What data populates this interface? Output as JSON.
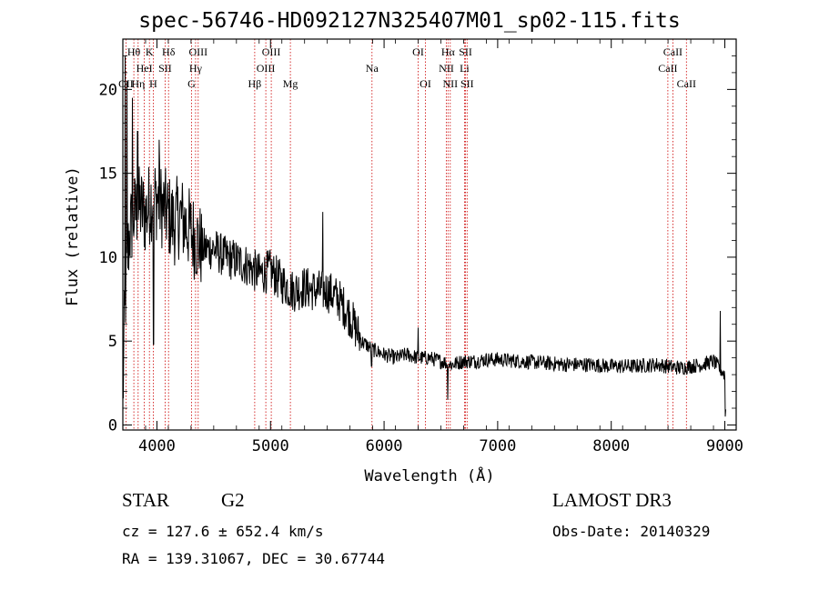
{
  "chart_data": {
    "type": "line",
    "title": "spec-56746-HD092127N325407M01_sp02-115.fits",
    "xlabel": "Wavelength (Å)",
    "ylabel": "Flux (relative)",
    "xlim": [
      3700,
      9100
    ],
    "ylim": [
      -0.3,
      23
    ],
    "x_ticks": [
      4000,
      5000,
      6000,
      7000,
      8000,
      9000
    ],
    "y_ticks": [
      0,
      5,
      10,
      15,
      20
    ],
    "series": [
      {
        "name": "flux",
        "anchors": [
          [
            3700,
            1
          ],
          [
            3710,
            5.0
          ],
          [
            3730,
            9.0
          ],
          [
            3760,
            11.5
          ],
          [
            3800,
            12.5
          ],
          [
            3850,
            13.0
          ],
          [
            3900,
            12.5
          ],
          [
            3950,
            13.5
          ],
          [
            4000,
            13.5
          ],
          [
            4050,
            13.0
          ],
          [
            4100,
            12.5
          ],
          [
            4150,
            12.0
          ],
          [
            4200,
            12.5
          ],
          [
            4250,
            12.0
          ],
          [
            4300,
            11.5
          ],
          [
            4350,
            11.0
          ],
          [
            4400,
            10.5
          ],
          [
            4500,
            10.5
          ],
          [
            4600,
            10.0
          ],
          [
            4700,
            9.8
          ],
          [
            4800,
            9.5
          ],
          [
            4900,
            9.0
          ],
          [
            5000,
            9.2
          ],
          [
            5100,
            8.5
          ],
          [
            5200,
            8.0
          ],
          [
            5300,
            8.2
          ],
          [
            5400,
            8.0
          ],
          [
            5500,
            8.0
          ],
          [
            5600,
            7.5
          ],
          [
            5700,
            6.5
          ],
          [
            5800,
            5.0
          ],
          [
            5900,
            4.5
          ],
          [
            6000,
            4.2
          ],
          [
            6100,
            4.0
          ],
          [
            6200,
            4.2
          ],
          [
            6300,
            4.0
          ],
          [
            6400,
            4.0
          ],
          [
            6500,
            3.8
          ],
          [
            6600,
            3.6
          ],
          [
            6700,
            3.8
          ],
          [
            6800,
            3.8
          ],
          [
            6900,
            3.9
          ],
          [
            7000,
            3.9
          ],
          [
            7200,
            3.8
          ],
          [
            7400,
            3.7
          ],
          [
            7600,
            3.6
          ],
          [
            7800,
            3.6
          ],
          [
            8000,
            3.5
          ],
          [
            8200,
            3.5
          ],
          [
            8400,
            3.6
          ],
          [
            8500,
            3.5
          ],
          [
            8600,
            3.4
          ],
          [
            8700,
            3.5
          ],
          [
            8800,
            3.6
          ],
          [
            8900,
            3.8
          ],
          [
            8950,
            3.4
          ],
          [
            9000,
            3.0
          ],
          [
            9010,
            0.5
          ]
        ],
        "features": [
          [
            3720,
            22
          ],
          [
            3735,
            20.5
          ],
          [
            3785,
            19.5
          ],
          [
            3830,
            17.5
          ],
          [
            3970,
            4.8
          ],
          [
            4020,
            17.0
          ],
          [
            5460,
            12.7
          ],
          [
            5890,
            3.5
          ],
          [
            6300,
            5.8
          ],
          [
            6560,
            1.5
          ],
          [
            8960,
            6.8
          ],
          [
            9005,
            0.5
          ]
        ]
      }
    ],
    "lines": [
      {
        "name": "OII",
        "x": 3727,
        "row": 2
      },
      {
        "name": "Hθ",
        "x": 3797,
        "row": 0
      },
      {
        "name": "Hη",
        "x": 3835,
        "row": 2
      },
      {
        "name": "HeI",
        "x": 3889,
        "row": 1
      },
      {
        "name": "K",
        "x": 3934,
        "row": 0
      },
      {
        "name": "H",
        "x": 3968,
        "row": 2
      },
      {
        "name": "SII",
        "x": 4072,
        "row": 1
      },
      {
        "name": "Hδ",
        "x": 4102,
        "row": 0
      },
      {
        "name": "G",
        "x": 4304,
        "row": 2
      },
      {
        "name": "Hγ",
        "x": 4340,
        "row": 1
      },
      {
        "name": "OIII",
        "x": 4363,
        "row": 0
      },
      {
        "name": "Hβ",
        "x": 4861,
        "row": 2
      },
      {
        "name": "OIII",
        "x": 4959,
        "row": 1
      },
      {
        "name": "OIII",
        "x": 5007,
        "row": 0
      },
      {
        "name": "Mg",
        "x": 5175,
        "row": 2
      },
      {
        "name": "Na",
        "x": 5894,
        "row": 1
      },
      {
        "name": "OI",
        "x": 6300,
        "row": 0
      },
      {
        "name": "OI",
        "x": 6364,
        "row": 2
      },
      {
        "name": "NII",
        "x": 6548,
        "row": 1
      },
      {
        "name": "Hα",
        "x": 6563,
        "row": 0
      },
      {
        "name": "NII",
        "x": 6583,
        "row": 2
      },
      {
        "name": "Li",
        "x": 6708,
        "row": 1
      },
      {
        "name": "SII",
        "x": 6717,
        "row": 0
      },
      {
        "name": "SII",
        "x": 6731,
        "row": 2
      },
      {
        "name": "CaII",
        "x": 8498,
        "row": 1
      },
      {
        "name": "CaII",
        "x": 8542,
        "row": 0
      },
      {
        "name": "CaII",
        "x": 8662,
        "row": 2
      }
    ],
    "line_color": "#cc0000"
  },
  "info": {
    "object_class": "STAR",
    "subclass": "G2",
    "survey": "LAMOST DR3",
    "cz": "cz = 127.6 ± 652.4 km/s",
    "obs_date": "Obs-Date: 20140329",
    "coords": "RA = 139.31067, DEC =  30.67744"
  }
}
